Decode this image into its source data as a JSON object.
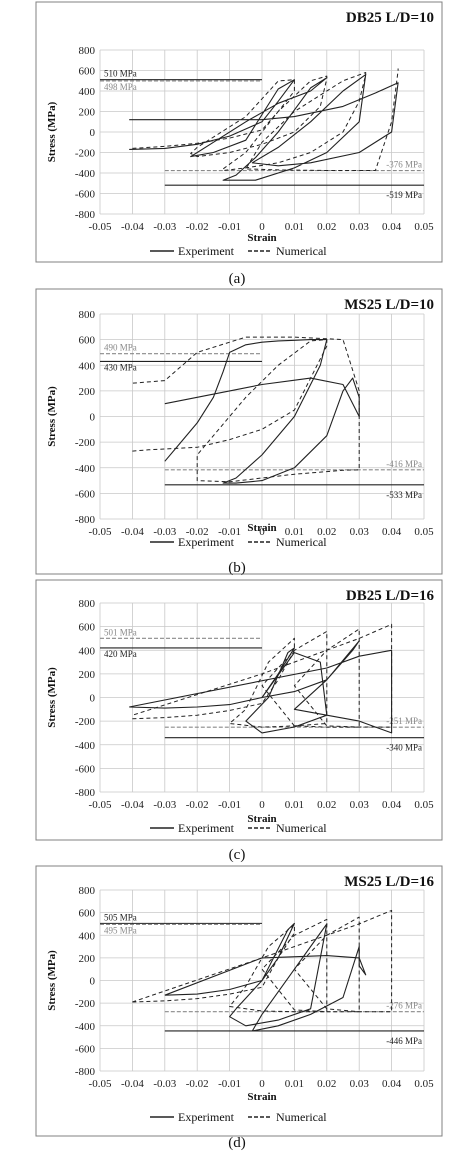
{
  "figure": {
    "colors": {
      "experiment": "#222222",
      "numerical": "#222222",
      "grid": "#c8c8c8",
      "gray_annot": "#8a8a8a",
      "frame": "#808080"
    }
  },
  "chart_data": [
    {
      "type": "line",
      "title": "DB25 L/D=10",
      "caption": "(a)",
      "xlabel": "Strain",
      "ylabel": "Stress (MPa)",
      "xlim": [
        -0.05,
        0.05
      ],
      "ylim": [
        -800,
        800
      ],
      "x_ticks": [
        "-0.05",
        "-0.04",
        "-0.03",
        "-0.02",
        "-0.01",
        "0",
        "0.01",
        "0.02",
        "0.03",
        "0.04",
        "0.05"
      ],
      "y_ticks": [
        "-800",
        "-600",
        "-400",
        "-200",
        "0",
        "200",
        "400",
        "600",
        "800"
      ],
      "grid": true,
      "legend": {
        "position": "bottom",
        "items": [
          "Experiment",
          "Numerical"
        ]
      },
      "annotations": [
        {
          "text": "510 MPa",
          "y": 510,
          "color": "dark"
        },
        {
          "text": "498 MPa",
          "y": 498,
          "color": "gray"
        },
        {
          "text": "-376 MPa",
          "y": -376,
          "color": "gray"
        },
        {
          "text": "-519 MPa",
          "y": -519,
          "color": "dark"
        }
      ],
      "series": [
        {
          "name": "Experiment",
          "x": [
            -0.041,
            -0.03,
            -0.02,
            -0.01,
            0.0,
            0.005,
            0.01,
            0.005,
            -0.005,
            -0.015,
            -0.022,
            -0.015,
            -0.005,
            0.005,
            0.015,
            0.02,
            0.015,
            0.005,
            -0.002,
            -0.008,
            -0.012,
            -0.002,
            0.01,
            0.02,
            0.03,
            0.032,
            0.025,
            0.015,
            0.005,
            -0.003,
            0.005,
            0.015,
            0.03,
            0.04,
            0.042,
            0.035,
            0.025,
            0.01,
            0.0,
            -0.041
          ],
          "y": [
            -170,
            -160,
            -120,
            -40,
            100,
            300,
            510,
            420,
            -80,
            -200,
            -240,
            -100,
            100,
            280,
            400,
            530,
            430,
            0,
            -250,
            -420,
            -470,
            -470,
            -350,
            -200,
            100,
            560,
            400,
            100,
            -150,
            -300,
            -330,
            -300,
            -200,
            0,
            480,
            380,
            250,
            150,
            120,
            120
          ]
        },
        {
          "name": "Numerical",
          "x": [
            -0.04,
            -0.035,
            -0.03,
            -0.02,
            -0.01,
            0.0,
            0.005,
            0.01,
            0.01,
            0.005,
            -0.005,
            -0.02,
            -0.022,
            -0.02,
            -0.01,
            0.0,
            0.01,
            0.018,
            0.02,
            0.02,
            0.015,
            0.005,
            -0.005,
            -0.012,
            -0.012,
            -0.005,
            0.005,
            0.015,
            0.025,
            0.03,
            0.032,
            0.032,
            0.025,
            0.01,
            0.0,
            -0.005,
            0.005,
            0.02,
            0.035,
            0.04,
            0.042,
            0.042
          ],
          "y": [
            -160,
            -150,
            -140,
            -110,
            -60,
            20,
            200,
            400,
            510,
            498,
            150,
            -150,
            -210,
            -240,
            -200,
            -120,
            0,
            250,
            520,
            545,
            500,
            200,
            -200,
            -360,
            -376,
            -350,
            -300,
            -200,
            0,
            300,
            560,
            580,
            500,
            200,
            -100,
            -360,
            -370,
            -376,
            -376,
            100,
            600,
            620
          ]
        }
      ]
    },
    {
      "type": "line",
      "title": "MS25 L/D=10",
      "caption": "(b)",
      "xlabel": "Strain",
      "ylabel": "Stress (MPa)",
      "xlim": [
        -0.05,
        0.05
      ],
      "ylim": [
        -800,
        800
      ],
      "x_ticks": [
        "-0.05",
        "-0.04",
        "-0.03",
        "-0.02",
        "-0.01",
        "0",
        "0.01",
        "0.02",
        "0.03",
        "0.04",
        "0.05"
      ],
      "y_ticks": [
        "-800",
        "-600",
        "-400",
        "-200",
        "0",
        "200",
        "400",
        "600",
        "800"
      ],
      "grid": true,
      "legend": {
        "position": "bottom",
        "items": [
          "Experiment",
          "Numerical"
        ]
      },
      "annotations": [
        {
          "text": "490 MPa",
          "y": 490,
          "color": "gray"
        },
        {
          "text": "430 MPa",
          "y": 430,
          "color": "dark"
        },
        {
          "text": "-416 MPa",
          "y": -416,
          "color": "gray"
        },
        {
          "text": "-533 MPa",
          "y": -533,
          "color": "dark"
        }
      ],
      "series": [
        {
          "name": "Experiment",
          "x": [
            -0.03,
            -0.025,
            -0.02,
            -0.015,
            -0.012,
            -0.01,
            -0.005,
            0.0,
            0.005,
            0.01,
            0.015,
            0.02,
            0.018,
            0.01,
            0.0,
            -0.008,
            -0.012,
            -0.008,
            0.0,
            0.01,
            0.02,
            0.025,
            0.028,
            0.03,
            0.03,
            0.025,
            0.015,
            0.0,
            -0.01,
            -0.02,
            -0.03
          ],
          "y": [
            -350,
            -200,
            -50,
            150,
            350,
            500,
            560,
            580,
            590,
            595,
            600,
            600,
            400,
            0,
            -300,
            -480,
            -520,
            -520,
            -500,
            -400,
            -150,
            200,
            300,
            150,
            0,
            250,
            300,
            250,
            200,
            150,
            100
          ]
        },
        {
          "name": "Numerical",
          "x": [
            -0.04,
            -0.035,
            -0.02,
            -0.01,
            0.0,
            0.01,
            0.015,
            0.02,
            0.02,
            0.015,
            0.005,
            -0.005,
            -0.015,
            -0.02,
            -0.02,
            -0.01,
            0.0,
            0.01,
            0.02,
            0.025,
            0.03,
            0.03,
            0.025,
            0.01,
            -0.005,
            -0.02,
            -0.03,
            -0.04
          ],
          "y": [
            -270,
            -260,
            -240,
            -180,
            -100,
            50,
            300,
            550,
            600,
            590,
            400,
            150,
            -150,
            -300,
            -500,
            -510,
            -480,
            -450,
            -430,
            -420,
            -416,
            200,
            600,
            620,
            620,
            500,
            280,
            260
          ]
        }
      ]
    },
    {
      "type": "line",
      "title": "DB25 L/D=16",
      "caption": "(c)",
      "xlabel": "Strain",
      "ylabel": "Stress (MPa)",
      "xlim": [
        -0.05,
        0.05
      ],
      "ylim": [
        -800,
        800
      ],
      "x_ticks": [
        "-0.05",
        "-0.04",
        "-0.03",
        "-0.02",
        "-0.01",
        "0",
        "0.01",
        "0.02",
        "0.03",
        "0.04",
        "0.05"
      ],
      "y_ticks": [
        "-800",
        "-600",
        "-400",
        "-200",
        "0",
        "200",
        "400",
        "600",
        "800"
      ],
      "grid": true,
      "legend": {
        "position": "bottom",
        "items": [
          "Experiment",
          "Numerical"
        ]
      },
      "annotations": [
        {
          "text": "501 MPa",
          "y": 501,
          "color": "gray"
        },
        {
          "text": "420 MPa",
          "y": 420,
          "color": "dark"
        },
        {
          "text": "-251 MPa",
          "y": -251,
          "color": "gray"
        },
        {
          "text": "-340 MPa",
          "y": -340,
          "color": "dark"
        }
      ],
      "series": [
        {
          "name": "Experiment",
          "x": [
            -0.041,
            -0.03,
            -0.02,
            -0.01,
            0.0,
            0.005,
            0.01,
            0.008,
            0.002,
            -0.005,
            0.0,
            0.01,
            0.02,
            0.018,
            0.01,
            0.0,
            0.01,
            0.02,
            0.03,
            0.028,
            0.02,
            0.01,
            0.02,
            0.03,
            0.04,
            0.04,
            0.03,
            0.02,
            -0.041
          ],
          "y": [
            -80,
            -90,
            -80,
            -60,
            0,
            200,
            420,
            380,
            0,
            -200,
            -300,
            -250,
            -150,
            300,
            380,
            0,
            50,
            150,
            480,
            400,
            150,
            -100,
            -150,
            -200,
            -300,
            400,
            350,
            250,
            -80
          ]
        },
        {
          "name": "Numerical",
          "x": [
            -0.04,
            -0.03,
            -0.02,
            -0.01,
            0.0,
            0.005,
            0.01,
            0.01,
            0.002,
            -0.005,
            -0.01,
            0.0,
            0.01,
            0.02,
            0.02,
            0.01,
            0.0,
            0.01,
            0.02,
            0.03,
            0.03,
            0.02,
            0.01,
            0.02,
            0.03,
            0.04,
            0.04,
            0.03,
            0.0,
            -0.04
          ],
          "y": [
            -180,
            -170,
            -150,
            -110,
            -50,
            150,
            400,
            501,
            300,
            -100,
            -220,
            -251,
            -240,
            -220,
            560,
            400,
            100,
            -240,
            -251,
            -251,
            580,
            400,
            100,
            -240,
            -250,
            -251,
            620,
            500,
            200,
            -150
          ]
        }
      ]
    },
    {
      "type": "line",
      "title": "MS25 L/D=16",
      "caption": "(d)",
      "xlabel": "Strain",
      "ylabel": "Stress (MPa)",
      "xlim": [
        -0.05,
        0.05
      ],
      "ylim": [
        -800,
        800
      ],
      "x_ticks": [
        "-0.05",
        "-0.04",
        "-0.03",
        "-0.02",
        "-0.01",
        "0",
        "0.01",
        "0.02",
        "0.03",
        "0.04",
        "0.05"
      ],
      "y_ticks": [
        "-800",
        "-600",
        "-400",
        "-200",
        "0",
        "200",
        "400",
        "600",
        "800"
      ],
      "grid": true,
      "legend": {
        "position": "bottom",
        "items": [
          "Experiment",
          "Numerical"
        ]
      },
      "annotations": [
        {
          "text": "505 MPa",
          "y": 505,
          "color": "dark"
        },
        {
          "text": "495 MPa",
          "y": 495,
          "color": "gray"
        },
        {
          "text": "-276 MPa",
          "y": -276,
          "color": "gray"
        },
        {
          "text": "-446 MPa",
          "y": -446,
          "color": "dark"
        }
      ],
      "series": [
        {
          "name": "Experiment",
          "x": [
            -0.03,
            -0.02,
            -0.01,
            0.0,
            0.005,
            0.01,
            0.008,
            0.0,
            -0.008,
            -0.01,
            -0.005,
            0.005,
            0.015,
            0.02,
            0.018,
            0.01,
            0.0,
            -0.003,
            0.005,
            0.015,
            0.025,
            0.03,
            0.03,
            0.032,
            0.03,
            0.02,
            0.0,
            -0.03
          ],
          "y": [
            -130,
            -120,
            -80,
            0,
            200,
            505,
            450,
            0,
            -250,
            -320,
            -400,
            -350,
            -250,
            500,
            420,
            100,
            -300,
            -446,
            -400,
            -300,
            -150,
            300,
            130,
            50,
            200,
            220,
            200,
            -130
          ]
        },
        {
          "name": "Numerical",
          "x": [
            -0.04,
            -0.03,
            -0.02,
            -0.01,
            0.0,
            0.005,
            0.01,
            0.01,
            0.002,
            -0.005,
            -0.01,
            0.0,
            0.01,
            0.02,
            0.02,
            0.01,
            0.0,
            0.01,
            0.02,
            0.03,
            0.03,
            0.02,
            0.01,
            0.02,
            0.03,
            0.04,
            0.04,
            0.03,
            0.0,
            -0.04
          ],
          "y": [
            -190,
            -180,
            -160,
            -120,
            -60,
            200,
            420,
            495,
            300,
            -50,
            -230,
            -270,
            -276,
            -276,
            540,
            400,
            100,
            -260,
            -276,
            -276,
            560,
            400,
            100,
            -250,
            -276,
            -276,
            620,
            500,
            200,
            -190
          ]
        }
      ]
    }
  ]
}
